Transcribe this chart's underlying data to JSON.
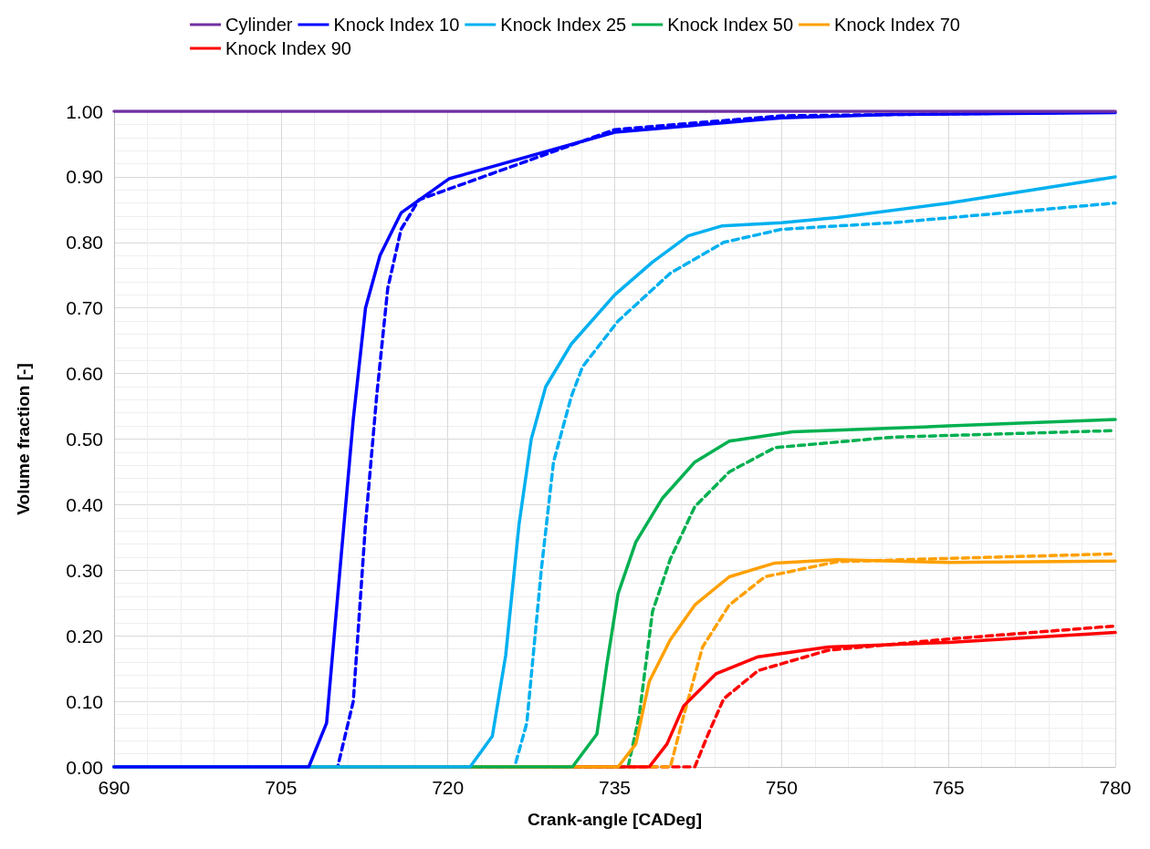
{
  "chart_data": {
    "type": "line",
    "xlabel": "Crank-angle [CADeg]",
    "ylabel": "Volume fraction [-]",
    "xlim": [
      690,
      780
    ],
    "xticks": [
      690,
      705,
      720,
      735,
      750,
      765,
      780
    ],
    "ylim": [
      0,
      1
    ],
    "yticks": [
      {
        "value": 0,
        "label": "0.00"
      },
      {
        "value": 0.1,
        "label": "0.10"
      },
      {
        "value": 0.2,
        "label": "0.20"
      },
      {
        "value": 0.3,
        "label": "0.30"
      },
      {
        "value": 0.4,
        "label": "0.40"
      },
      {
        "value": 0.5,
        "label": "0.50"
      },
      {
        "value": 0.6,
        "label": "0.60"
      },
      {
        "value": 0.7,
        "label": "0.70"
      },
      {
        "value": 0.8,
        "label": "0.80"
      },
      {
        "value": 0.9,
        "label": "0.90"
      },
      {
        "value": 1,
        "label": "1.00"
      }
    ],
    "grid": true,
    "legend": "top",
    "marker": "none",
    "series": [
      {
        "name": "Cylinder",
        "color": "#7030a0",
        "line_style": "solid",
        "x": [
          690,
          780
        ],
        "values": [
          1,
          1
        ]
      },
      {
        "name": "Knock Index 10",
        "color": "#0000ff",
        "line_style": "solid",
        "x": [
          690,
          707.5,
          709.1,
          710.3,
          711.5,
          712.6,
          713.9,
          715.8,
          720.1,
          735,
          750,
          760,
          780
        ],
        "values": [
          0,
          0,
          0.067,
          0.3,
          0.53,
          0.7,
          0.78,
          0.845,
          0.897,
          0.968,
          0.99,
          0.995,
          0.998
        ]
      },
      {
        "name": "Knock Index 25",
        "color": "#00b0f0",
        "line_style": "solid",
        "x": [
          690,
          722,
          724,
          725.2,
          726.4,
          727.5,
          728.8,
          731.1,
          735,
          738.4,
          741.6,
          744.6,
          750,
          755,
          765,
          780
        ],
        "values": [
          0,
          0,
          0.047,
          0.17,
          0.37,
          0.5,
          0.58,
          0.645,
          0.72,
          0.77,
          0.81,
          0.825,
          0.83,
          0.838,
          0.86,
          0.9
        ]
      },
      {
        "name": "Knock Index 50",
        "color": "#00b050",
        "line_style": "solid",
        "x": [
          690,
          731.2,
          733.4,
          734.3,
          735.3,
          736.9,
          739.3,
          742.2,
          745.3,
          751,
          765,
          780
        ],
        "values": [
          0,
          0,
          0.05,
          0.157,
          0.264,
          0.343,
          0.41,
          0.465,
          0.497,
          0.511,
          0.52,
          0.53
        ]
      },
      {
        "name": "Knock Index 70",
        "color": "#ffa000",
        "line_style": "solid",
        "x": [
          690,
          735.3,
          736.9,
          738.1,
          740,
          742.2,
          745.3,
          749.4,
          755,
          765,
          780
        ],
        "values": [
          0,
          0,
          0.035,
          0.13,
          0.194,
          0.247,
          0.29,
          0.311,
          0.316,
          0.312,
          0.314
        ]
      },
      {
        "name": "Knock Index 90",
        "color": "#ff0000",
        "line_style": "solid",
        "x": [
          690,
          738.1,
          739.7,
          741.2,
          744.1,
          747.9,
          754.2,
          765,
          780
        ],
        "values": [
          0,
          0,
          0.035,
          0.093,
          0.142,
          0.168,
          0.183,
          0.19,
          0.205
        ]
      },
      {
        "color": "#0000ff",
        "line_style": "dashed",
        "x": [
          690,
          710.1,
          711.5,
          712.6,
          713.6,
          714.6,
          715.8,
          717.4,
          735,
          750,
          780
        ],
        "values": [
          0,
          0,
          0.1,
          0.37,
          0.565,
          0.73,
          0.82,
          0.865,
          0.972,
          0.993,
          0.999
        ]
      },
      {
        "color": "#00b0f0",
        "line_style": "dashed",
        "x": [
          690,
          726,
          727.1,
          728.4,
          729.5,
          731.1,
          732.1,
          735.3,
          740,
          744.8,
          750,
          760,
          780
        ],
        "values": [
          0,
          0,
          0.067,
          0.3,
          0.465,
          0.565,
          0.61,
          0.68,
          0.753,
          0.8,
          0.82,
          0.83,
          0.86
        ]
      },
      {
        "color": "#00b050",
        "line_style": "dashed",
        "x": [
          690,
          736.2,
          737.2,
          738.4,
          740,
          742.2,
          745.3,
          749.4,
          760,
          780
        ],
        "values": [
          0,
          0,
          0.078,
          0.237,
          0.317,
          0.397,
          0.45,
          0.487,
          0.503,
          0.513
        ]
      },
      {
        "color": "#ffa000",
        "line_style": "dashed",
        "x": [
          690,
          740,
          741.2,
          742.9,
          745.3,
          748.5,
          755,
          765,
          780
        ],
        "values": [
          0,
          0,
          0.078,
          0.183,
          0.247,
          0.29,
          0.313,
          0.318,
          0.325
        ]
      },
      {
        "color": "#ff0000",
        "line_style": "dashed",
        "x": [
          690,
          742.2,
          743.4,
          744.8,
          747.9,
          754.2,
          765,
          780
        ],
        "values": [
          0,
          0,
          0.05,
          0.104,
          0.147,
          0.178,
          0.195,
          0.215
        ]
      }
    ]
  }
}
